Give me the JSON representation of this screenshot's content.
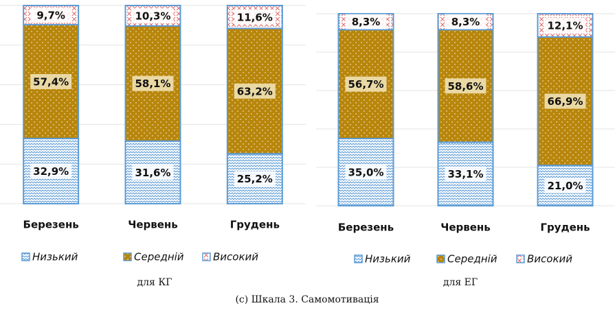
{
  "chart_data": [
    {
      "type": "bar",
      "stacked": true,
      "subtitle": "для КГ",
      "categories": [
        "Березень",
        "Червень",
        "Грудень"
      ],
      "series": [
        {
          "name": "Низький",
          "color": "#5b9bd5",
          "values": [
            32.9,
            31.6,
            25.2
          ],
          "value_labels": [
            "32,9%",
            "31,6%",
            "25,2%"
          ]
        },
        {
          "name": "Середній",
          "color": "#b8860b",
          "values": [
            57.4,
            58.1,
            63.2
          ],
          "value_labels": [
            "57,4%",
            "58,1%",
            "63,2%"
          ]
        },
        {
          "name": "Високий",
          "color": "#e06666",
          "values": [
            9.7,
            10.3,
            11.6
          ],
          "value_labels": [
            "9,7%",
            "10,3%",
            "11,6%"
          ]
        }
      ],
      "ylim": [
        0,
        100
      ],
      "yticks": [
        0,
        20,
        40,
        60,
        80,
        100
      ],
      "grid": true,
      "legend": "bottom"
    },
    {
      "type": "bar",
      "stacked": true,
      "subtitle": "для ЕГ",
      "categories": [
        "Березень",
        "Червень",
        "Грудень"
      ],
      "series": [
        {
          "name": "Низький",
          "color": "#5b9bd5",
          "values": [
            35.0,
            33.1,
            21.0
          ],
          "value_labels": [
            "35,0%",
            "33,1%",
            "21,0%"
          ]
        },
        {
          "name": "Середній",
          "color": "#b8860b",
          "values": [
            56.7,
            58.6,
            66.9
          ],
          "value_labels": [
            "56,7%",
            "58,6%",
            "66,9%"
          ]
        },
        {
          "name": "Високий",
          "color": "#e06666",
          "values": [
            8.3,
            8.3,
            12.1
          ],
          "value_labels": [
            "8,3%",
            "8,3%",
            "12,1%"
          ]
        }
      ],
      "ylim": [
        0,
        100
      ],
      "yticks": [
        0,
        20,
        40,
        60,
        80,
        100
      ],
      "grid": true,
      "legend": "bottom"
    }
  ],
  "caption": "(c) Шкала 3. Самомотивація"
}
